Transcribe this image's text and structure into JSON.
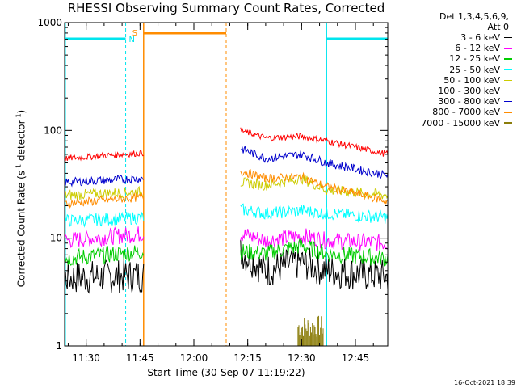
{
  "title": "RHESSI Observing Summary Count Rates, Corrected",
  "timestamp": "16-Oct-2021 18:39",
  "legend_header": [
    "Det 1,3,4,5,6,9,",
    "Att 0"
  ],
  "ylabel_text": "Corrected Count Rate (s",
  "ylabel_sup1": "-1",
  "ylabel_mid": " detector",
  "ylabel_sup2": "-1",
  "ylabel_end": ")",
  "xlabel": "Start Time (30-Sep-07 11:19:22)",
  "markers": {
    "night": "N",
    "saa": "S"
  },
  "colors": {
    "night": "#00e5ee",
    "saa": "#ff8c00",
    "attenuator": "#8b7d0b"
  },
  "chart_data": {
    "type": "line",
    "y_scale": "log",
    "ylim": [
      1,
      1000
    ],
    "y_ticks": [
      1,
      10,
      100,
      1000
    ],
    "y_tick_labels": [
      "1",
      "10",
      "100",
      "1000"
    ],
    "xlim": [
      "11:24",
      "12:54"
    ],
    "x_ticks": [
      "11:30",
      "11:45",
      "12:00",
      "12:15",
      "12:30",
      "12:45"
    ],
    "x_tick_labels": [
      "11:30",
      "11:45",
      "12:00",
      "12:15",
      "12:30",
      "12:45"
    ],
    "data_gap": [
      "11:46",
      "12:13"
    ],
    "night_intervals": [
      [
        "11:24",
        "11:41"
      ],
      [
        "12:37",
        "12:54"
      ]
    ],
    "saa_interval": [
      "11:46",
      "12:09"
    ],
    "attenuator_spike": [
      "12:29",
      "12:36"
    ],
    "series": [
      {
        "name": "3 - 6 keV",
        "color": "#000000",
        "x": [
          "11:24",
          "11:46",
          "12:13",
          "12:20",
          "12:30",
          "12:37",
          "12:54"
        ],
        "values": [
          4.3,
          4.5,
          7.5,
          5.0,
          6.0,
          5.0,
          4.4
        ]
      },
      {
        "name": "6 - 12 keV",
        "color": "#ff00ff",
        "x": [
          "11:24",
          "11:46",
          "12:13",
          "12:20",
          "12:30",
          "12:37",
          "12:54"
        ],
        "values": [
          9.5,
          11.0,
          11.0,
          9.5,
          10.5,
          9.5,
          9.0
        ]
      },
      {
        "name": "12 - 25 keV",
        "color": "#00cc00",
        "x": [
          "11:24",
          "11:46",
          "12:13",
          "12:20",
          "12:30",
          "12:37",
          "12:54"
        ],
        "values": [
          6.5,
          7.5,
          7.5,
          7.2,
          8.5,
          7.2,
          6.5
        ]
      },
      {
        "name": "25 - 50 keV",
        "color": "#00ffff",
        "x": [
          "11:24",
          "11:46",
          "12:13",
          "12:20",
          "12:30",
          "12:37",
          "12:54"
        ],
        "values": [
          14.5,
          15.5,
          18.5,
          17.0,
          18.0,
          17.0,
          15.5
        ]
      },
      {
        "name": "50 - 100 keV",
        "color": "#cccc00",
        "x": [
          "11:24",
          "11:46",
          "12:13",
          "12:20",
          "12:30",
          "12:37",
          "12:54"
        ],
        "values": [
          25,
          27,
          33,
          31,
          36,
          28,
          25
        ]
      },
      {
        "name": "100 - 300 keV",
        "color": "#ff0000",
        "x": [
          "11:24",
          "11:46",
          "12:13",
          "12:20",
          "12:30",
          "12:37",
          "12:54"
        ],
        "values": [
          55,
          62,
          100,
          85,
          88,
          80,
          60
        ]
      },
      {
        "name": "300 - 800 keV",
        "color": "#0000cc",
        "x": [
          "11:24",
          "11:46",
          "12:13",
          "12:20",
          "12:30",
          "12:37",
          "12:54"
        ],
        "values": [
          33,
          36,
          68,
          55,
          60,
          50,
          38
        ]
      },
      {
        "name": "800 - 7000 keV",
        "color": "#ff8c00",
        "x": [
          "11:24",
          "11:46",
          "12:13",
          "12:20",
          "12:30",
          "12:37",
          "12:54"
        ],
        "values": [
          21,
          24,
          42,
          36,
          37,
          30,
          22
        ]
      },
      {
        "name": "7000 - 15000 keV",
        "color": "#8b7d0b",
        "x": [],
        "values": []
      }
    ]
  }
}
